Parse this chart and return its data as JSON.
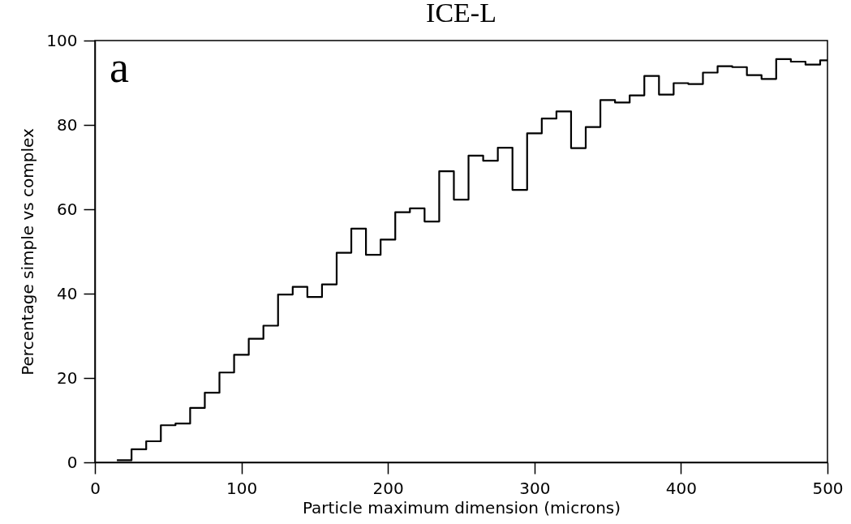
{
  "chart_data": {
    "type": "histogram",
    "title": "ICE-L",
    "xlabel": "Particle maximum dimension (microns)",
    "ylabel": "Percentage simple vs complex",
    "annotations": [
      "a"
    ],
    "bins": [
      15,
      25,
      35,
      45,
      55,
      65,
      75,
      85,
      95,
      105,
      115,
      125,
      135,
      145,
      155,
      165,
      175,
      185,
      195,
      205,
      215,
      225,
      235,
      245,
      255,
      265,
      275,
      285,
      295,
      305,
      315,
      325,
      335,
      345,
      355,
      365,
      375,
      385,
      395,
      405,
      415,
      425,
      435,
      445,
      455,
      465,
      475,
      485,
      495,
      500
    ],
    "values": [
      0.5,
      3.1,
      5.0,
      8.8,
      9.2,
      12.9,
      16.5,
      21.3,
      25.5,
      29.3,
      32.4,
      39.8,
      41.6,
      39.2,
      42.2,
      49.7,
      55.4,
      49.2,
      52.8,
      59.3,
      60.2,
      57.1,
      69.0,
      62.3,
      72.7,
      71.5,
      74.6,
      64.6,
      78.0,
      81.5,
      83.2,
      74.5,
      79.5,
      85.9,
      85.3,
      87.0,
      91.6,
      87.2,
      89.9,
      89.7,
      92.4,
      93.9,
      93.7,
      91.8,
      90.9,
      95.6,
      95.0,
      94.3,
      95.3
    ],
    "color": "#000000",
    "xlim": [
      0,
      500
    ],
    "xticks": [
      0,
      100,
      200,
      300,
      400,
      500
    ],
    "ylim": [
      0,
      100
    ],
    "yticks": [
      0,
      20,
      40,
      60,
      80,
      100
    ],
    "grid": false
  }
}
